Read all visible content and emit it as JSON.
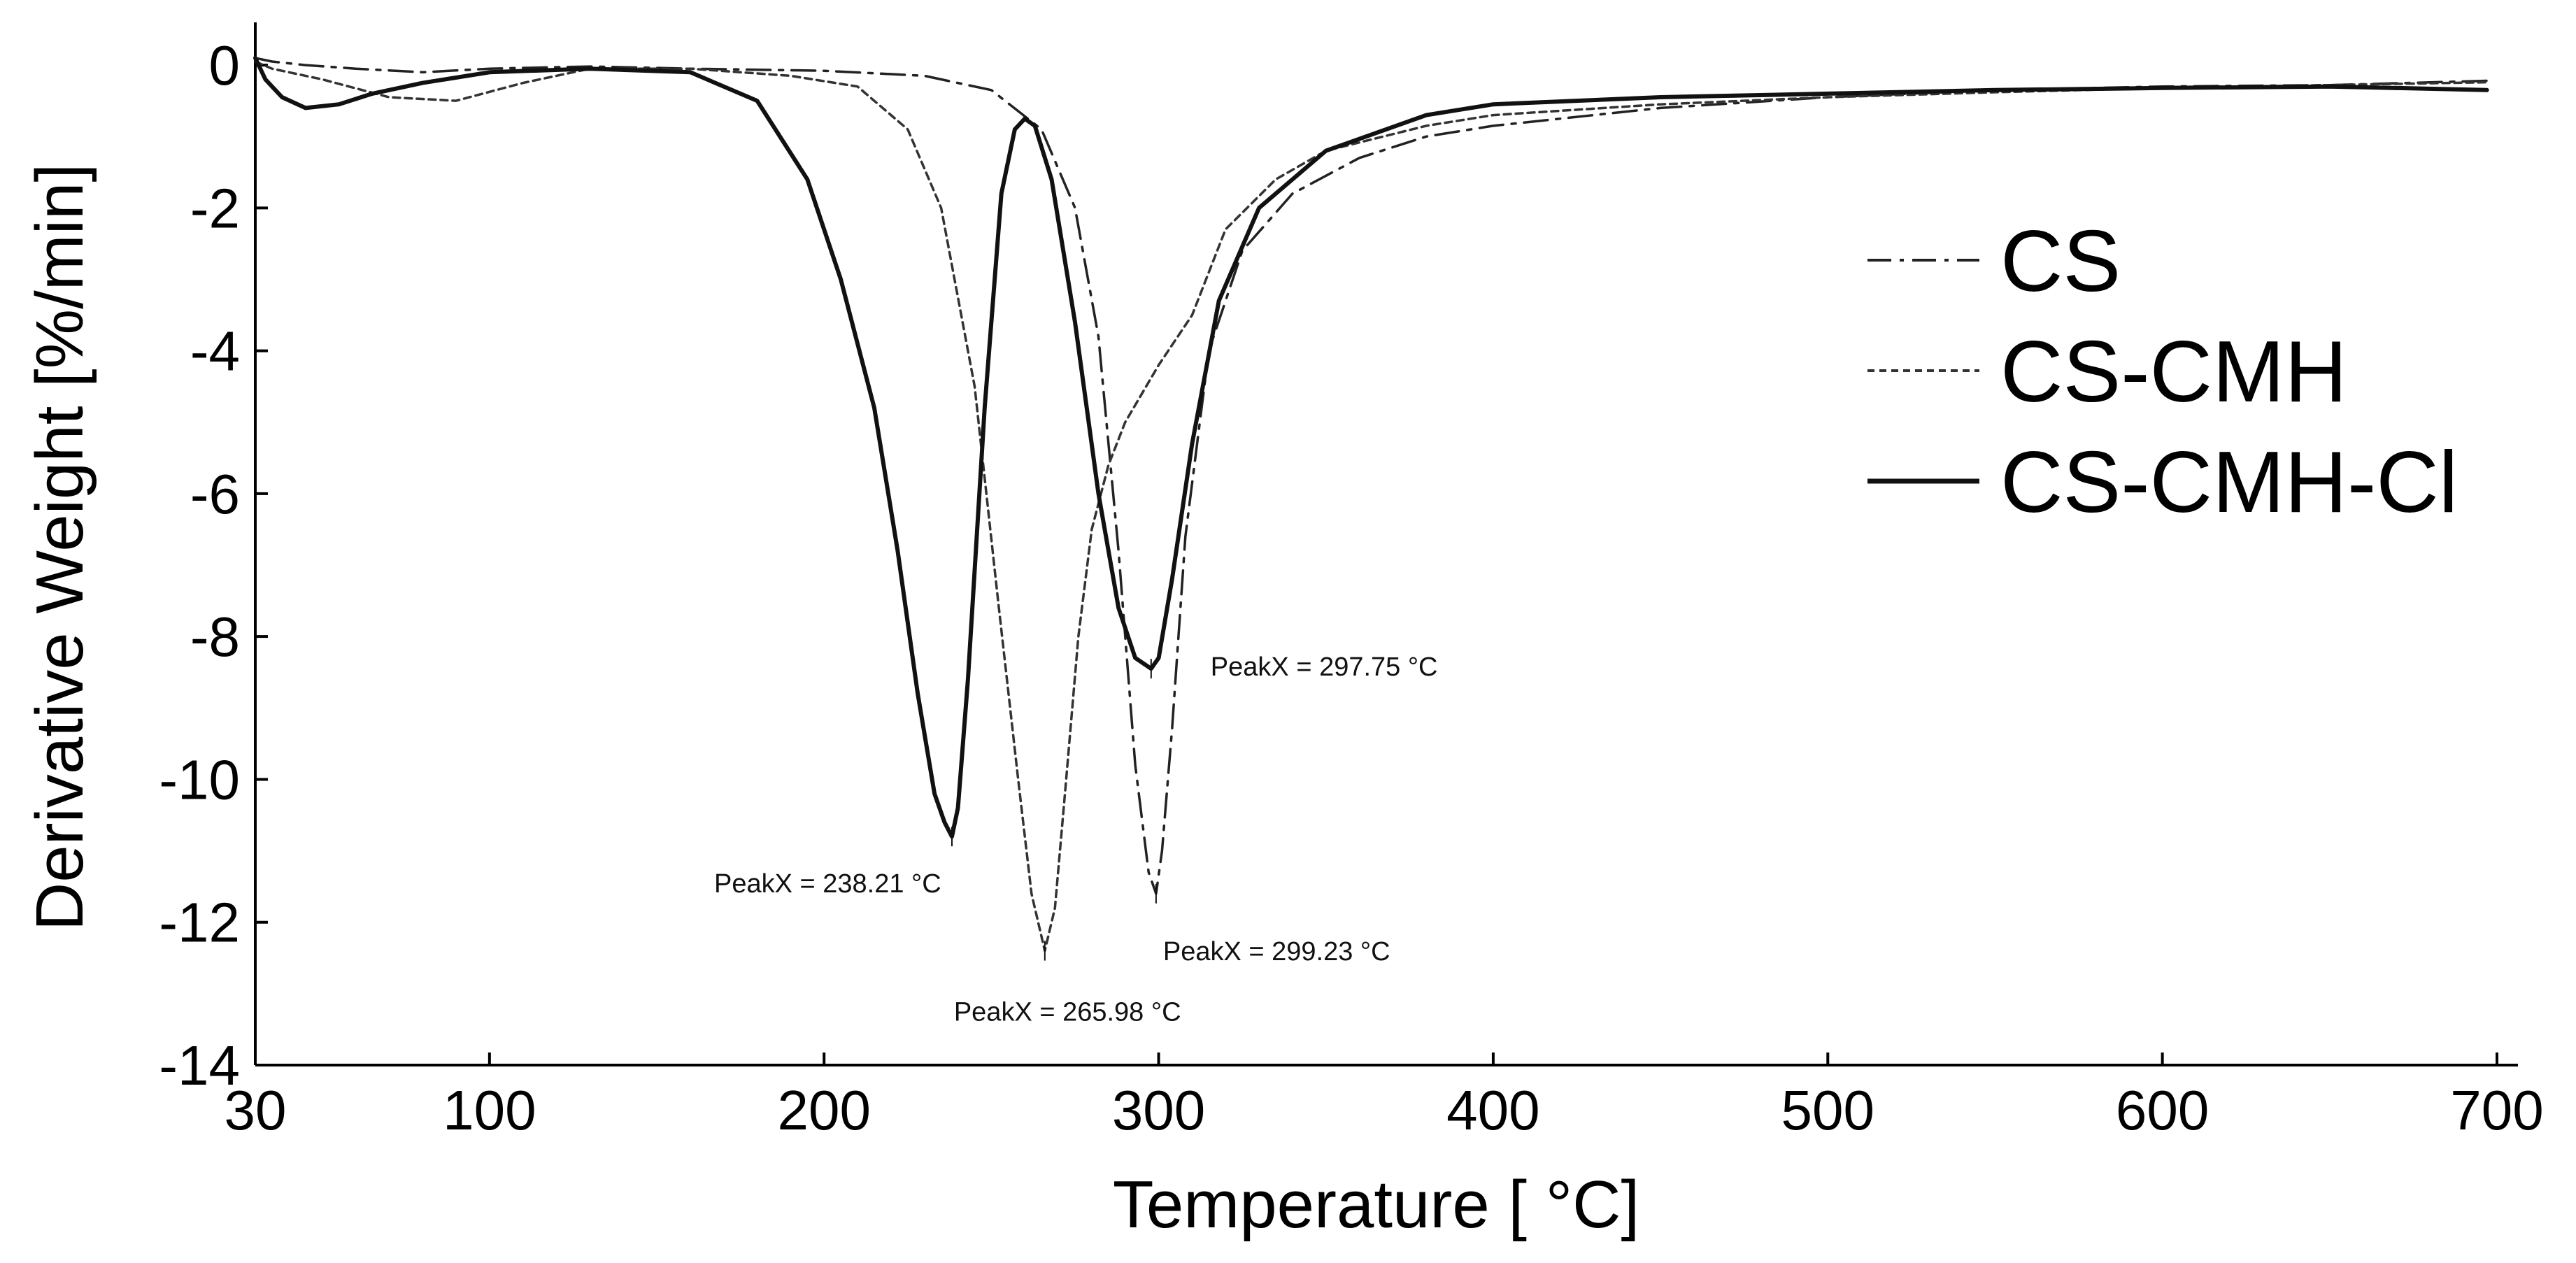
{
  "chart_data": {
    "type": "line",
    "title": "",
    "xlabel": "Temperature [ °C]",
    "ylabel": "Derivative Weight [%/min]",
    "xlim": [
      30,
      700
    ],
    "ylim": [
      -14,
      0.5
    ],
    "xticks": [
      30,
      100,
      200,
      300,
      400,
      500,
      600,
      700
    ],
    "yticks": [
      0,
      -2,
      -4,
      -6,
      -8,
      -10,
      -12,
      -14
    ],
    "legend_position": "right",
    "series": [
      {
        "name": "CS",
        "style": "dashdot",
        "color": "#222222",
        "x": [
          30,
          35,
          45,
          60,
          80,
          100,
          130,
          160,
          200,
          230,
          250,
          265,
          275,
          282,
          288,
          293,
          297,
          299.23,
          301,
          304,
          308,
          315,
          325,
          340,
          360,
          380,
          400,
          450,
          500,
          550,
          600,
          650,
          697
        ],
        "y": [
          0.1,
          0.05,
          0.0,
          -0.05,
          -0.1,
          -0.05,
          -0.02,
          -0.05,
          -0.08,
          -0.15,
          -0.35,
          -0.9,
          -2.0,
          -3.8,
          -6.8,
          -9.8,
          -11.3,
          -11.6,
          -11.0,
          -9.3,
          -6.6,
          -4.0,
          -2.6,
          -1.8,
          -1.3,
          -1.0,
          -0.85,
          -0.6,
          -0.45,
          -0.35,
          -0.3,
          -0.28,
          -0.22
        ]
      },
      {
        "name": "CS-CMH",
        "style": "dotted",
        "color": "#333333",
        "x": [
          30,
          35,
          50,
          70,
          90,
          110,
          130,
          160,
          190,
          210,
          225,
          235,
          245,
          252,
          258,
          262,
          265.98,
          269,
          272,
          276,
          280,
          285,
          290,
          300,
          310,
          320,
          335,
          350,
          380,
          400,
          450,
          500,
          550,
          600,
          650,
          697
        ],
        "y": [
          0.05,
          -0.05,
          -0.2,
          -0.45,
          -0.5,
          -0.25,
          -0.05,
          -0.05,
          -0.15,
          -0.3,
          -0.9,
          -2.0,
          -4.5,
          -7.5,
          -10.0,
          -11.6,
          -12.4,
          -11.8,
          -10.2,
          -8.0,
          -6.5,
          -5.6,
          -5.0,
          -4.2,
          -3.5,
          -2.3,
          -1.6,
          -1.2,
          -0.85,
          -0.7,
          -0.55,
          -0.45,
          -0.38,
          -0.32,
          -0.28,
          -0.24
        ]
      },
      {
        "name": "CS-CMH-Cl",
        "style": "solid",
        "color": "#111111",
        "x": [
          30,
          33,
          38,
          45,
          55,
          65,
          80,
          100,
          130,
          160,
          180,
          195,
          205,
          215,
          222,
          228,
          233,
          236,
          238.21,
          240,
          243,
          248,
          253,
          257,
          260,
          263,
          268,
          275,
          282,
          288,
          293,
          297.75,
          300,
          304,
          310,
          318,
          330,
          350,
          380,
          400,
          450,
          500,
          550,
          600,
          650,
          697
        ],
        "y": [
          0.1,
          -0.2,
          -0.45,
          -0.6,
          -0.55,
          -0.4,
          -0.25,
          -0.1,
          -0.05,
          -0.1,
          -0.5,
          -1.6,
          -3.0,
          -4.8,
          -6.8,
          -8.8,
          -10.2,
          -10.6,
          -10.8,
          -10.4,
          -8.6,
          -4.8,
          -1.8,
          -0.9,
          -0.75,
          -0.85,
          -1.6,
          -3.6,
          -6.0,
          -7.6,
          -8.3,
          -8.45,
          -8.3,
          -7.2,
          -5.3,
          -3.3,
          -2.0,
          -1.2,
          -0.7,
          -0.55,
          -0.45,
          -0.4,
          -0.35,
          -0.32,
          -0.3,
          -0.35
        ]
      }
    ],
    "annotations": [
      {
        "text": "PeakX = 238.21 °C",
        "x": 238.21,
        "y": -10.8,
        "anchor": "below-left"
      },
      {
        "text": "PeakX = 265.98 °C",
        "x": 265.98,
        "y": -12.4,
        "anchor": "below"
      },
      {
        "text": "PeakX = 299.23 °C",
        "x": 299.23,
        "y": -11.6,
        "anchor": "below-right"
      },
      {
        "text": "PeakX = 297.75 °C",
        "x": 297.75,
        "y": -8.45,
        "anchor": "right"
      }
    ]
  }
}
